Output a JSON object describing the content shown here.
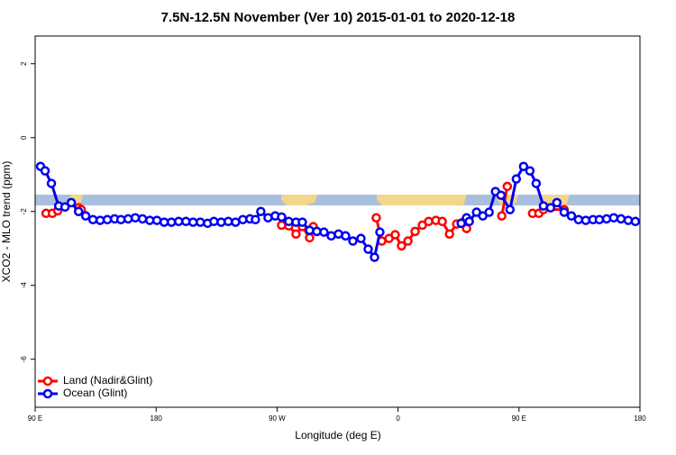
{
  "chart_data": {
    "type": "line",
    "title": "7.5N-12.5N November (Ver 10)   2015-01-01 to 2020-12-18",
    "x_label": "Longitude (deg E)",
    "y_label": "XCO2 - MLO trend (ppm)",
    "xlim": [
      90,
      540
    ],
    "xticks": [
      {
        "value": 90,
        "label": "90 E"
      },
      {
        "value": 180,
        "label": "180"
      },
      {
        "value": 270,
        "label": "90 W"
      },
      {
        "value": 360,
        "label": "0"
      },
      {
        "value": 450,
        "label": "90 E"
      },
      {
        "value": 540,
        "label": "180"
      }
    ],
    "ylim": [
      -7.3,
      2.75
    ],
    "yticks": [
      2,
      0,
      -2,
      -4,
      -6
    ],
    "legend": "lower left",
    "series": [
      {
        "name": "Land (Nadir&Glint)",
        "color": "#ff0000",
        "x": [
          98.1,
          102.8,
          106.8,
          null,
          122.3,
          124.3,
          null,
          273.4,
          278.7,
          284.1,
          288.8,
          294.2,
          296.9,
          null,
          343.8,
          347.9,
          353.3,
          357.9,
          362.6,
          367.4,
          372.7,
          378.1,
          382.8,
          388.2,
          392.9,
          398.3,
          403.6,
          408.3,
          411.0,
          null,
          437.2,
          441.3,
          null,
          460.1,
          464.8,
          468.2,
          483.6
        ],
        "values": [
          -2.05,
          -2.05,
          -1.98,
          null,
          -1.9,
          -1.95,
          null,
          -2.37,
          -2.39,
          -2.61,
          -2.41,
          -2.71,
          -2.41,
          null,
          -2.17,
          -2.8,
          -2.73,
          -2.63,
          -2.93,
          -2.8,
          -2.54,
          -2.37,
          -2.27,
          -2.24,
          -2.27,
          -2.61,
          -2.34,
          -2.29,
          -2.46,
          null,
          -2.12,
          -1.32,
          null,
          -2.05,
          -2.05,
          -1.95,
          -1.95
        ]
      },
      {
        "name": "Ocean (Glint)",
        "color": "#0000ee",
        "x": [
          94.0,
          97.4,
          102.1,
          107.5,
          112.2,
          116.9,
          122.3,
          127.6,
          133.0,
          138.4,
          143.7,
          149.1,
          153.8,
          159.2,
          164.5,
          169.9,
          175.3,
          180.6,
          186.0,
          191.4,
          196.8,
          202.2,
          207.5,
          212.9,
          218.3,
          223.0,
          228.4,
          233.7,
          239.1,
          244.5,
          249.8,
          253.9,
          257.9,
          263.3,
          268.6,
          273.4,
          278.7,
          284.1,
          288.8,
          294.2,
          299.6,
          304.9,
          310.3,
          315.7,
          321.0,
          326.4,
          332.4,
          337.8,
          342.5,
          346.5,
          null,
          407.0,
          411.0,
          413.0,
          418.4,
          423.1,
          427.8,
          432.5,
          436.6,
          443.3,
          448.0,
          453.4,
          458.1,
          462.8,
          468.2,
          473.5,
          478.2,
          483.6,
          489.0,
          494.3,
          499.7,
          505.1,
          509.8,
          515.2,
          520.5,
          525.9,
          531.3,
          536.6
        ],
        "values": [
          -0.78,
          -0.9,
          -1.24,
          -1.85,
          -1.88,
          -1.76,
          -2.0,
          -2.12,
          -2.22,
          -2.24,
          -2.22,
          -2.2,
          -2.22,
          -2.2,
          -2.17,
          -2.2,
          -2.24,
          -2.24,
          -2.29,
          -2.29,
          -2.27,
          -2.27,
          -2.29,
          -2.29,
          -2.32,
          -2.27,
          -2.29,
          -2.27,
          -2.29,
          -2.22,
          -2.2,
          -2.22,
          -2.0,
          -2.17,
          -2.12,
          -2.15,
          -2.27,
          -2.29,
          -2.29,
          -2.51,
          -2.54,
          -2.56,
          -2.66,
          -2.61,
          -2.66,
          -2.8,
          -2.73,
          -3.02,
          -3.24,
          -2.56,
          null,
          -2.32,
          -2.17,
          -2.27,
          -2.02,
          -2.12,
          -2.02,
          -1.46,
          -1.56,
          -1.95,
          -1.12,
          -0.78,
          -0.9,
          -1.24,
          -1.85,
          -1.9,
          -1.76,
          -2.02,
          -2.12,
          -2.22,
          -2.24,
          -2.22,
          -2.22,
          -2.2,
          -2.17,
          -2.2,
          -2.24,
          -2.27
        ]
      }
    ]
  }
}
